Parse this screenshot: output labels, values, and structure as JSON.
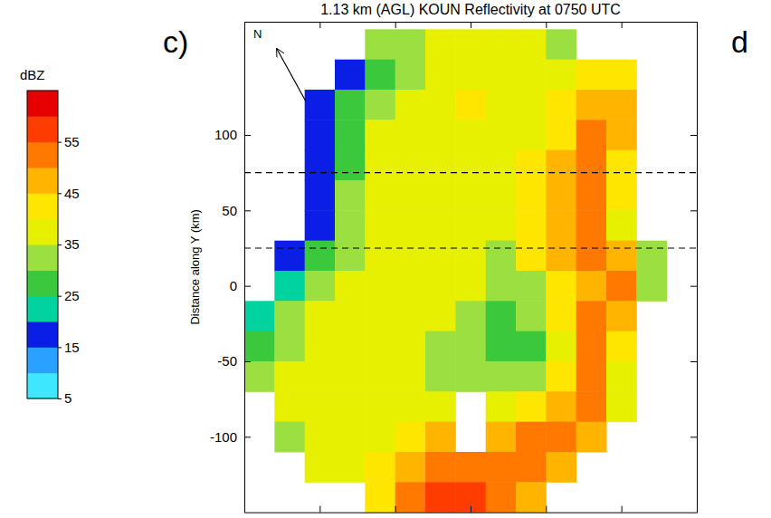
{
  "chart_data": {
    "type": "heatmap",
    "title": "1.13 km (AGL) KOUN Reflectivity at 0750 UTC",
    "y_label": "Distance along Y (km)",
    "annotations": [
      "c)",
      "d",
      "N"
    ],
    "xlim": [
      -150,
      150
    ],
    "ylim": [
      -150,
      175
    ],
    "xticks": [
      -150,
      -100,
      -50,
      0,
      50,
      100,
      150
    ],
    "yticks": [
      -100,
      -50,
      0,
      50,
      100
    ],
    "tick_labels": "y",
    "hlines": [
      75,
      25
    ],
    "x": [
      -140,
      -120,
      -100,
      -80,
      -60,
      -40,
      -20,
      0,
      20,
      40,
      60,
      80,
      100,
      120,
      140
    ],
    "y": [
      160,
      140,
      120,
      100,
      80,
      60,
      40,
      20,
      0,
      -20,
      -40,
      -60,
      -80,
      -100,
      -120,
      -140
    ],
    "values": [
      [
        null,
        null,
        null,
        null,
        30,
        34,
        38,
        38,
        37,
        35,
        32,
        null,
        null,
        null,
        null
      ],
      [
        null,
        null,
        null,
        18,
        28,
        33,
        37,
        38,
        38,
        37,
        37,
        42,
        40,
        null,
        null
      ],
      [
        null,
        null,
        17,
        25,
        33,
        38,
        38,
        40,
        38,
        38,
        40,
        48,
        45,
        null,
        null
      ],
      [
        null,
        null,
        17,
        28,
        35,
        38,
        38,
        38,
        37,
        38,
        42,
        50,
        45,
        null,
        null
      ],
      [
        null,
        null,
        17,
        27,
        35,
        37,
        38,
        38,
        37,
        40,
        45,
        52,
        42,
        null,
        null
      ],
      [
        null,
        null,
        18,
        30,
        36,
        38,
        38,
        37,
        36,
        40,
        47,
        53,
        40,
        null,
        null
      ],
      [
        null,
        null,
        18,
        32,
        36,
        37,
        37,
        36,
        35,
        42,
        48,
        52,
        38,
        null,
        null
      ],
      [
        null,
        17,
        25,
        32,
        36,
        38,
        37,
        35,
        33,
        40,
        45,
        52,
        45,
        30,
        null
      ],
      [
        null,
        20,
        33,
        36,
        37,
        37,
        36,
        35,
        30,
        32,
        42,
        48,
        50,
        30,
        null
      ],
      [
        20,
        30,
        35,
        37,
        38,
        37,
        35,
        33,
        28,
        30,
        40,
        50,
        45,
        null,
        null
      ],
      [
        25,
        33,
        36,
        37,
        37,
        36,
        34,
        32,
        28,
        28,
        38,
        50,
        40,
        null,
        null
      ],
      [
        30,
        35,
        37,
        37,
        37,
        36,
        34,
        33,
        30,
        33,
        40,
        52,
        35,
        null,
        null
      ],
      [
        null,
        35,
        37,
        37,
        37,
        35,
        35,
        null,
        38,
        40,
        45,
        52,
        35,
        null,
        null
      ],
      [
        null,
        32,
        36,
        37,
        38,
        40,
        45,
        null,
        45,
        50,
        50,
        48,
        null,
        null,
        null
      ],
      [
        null,
        null,
        35,
        38,
        40,
        48,
        52,
        52,
        52,
        50,
        45,
        null,
        null,
        null,
        null
      ],
      [
        null,
        null,
        null,
        null,
        42,
        50,
        55,
        55,
        50,
        45,
        null,
        null,
        null,
        null,
        null
      ]
    ],
    "colorbar": {
      "label": "dBZ",
      "lim": [
        5,
        65
      ],
      "ticks": [
        5,
        15,
        25,
        35,
        45,
        55
      ],
      "bounds": [
        5,
        10,
        15,
        20,
        25,
        30,
        35,
        40,
        45,
        50,
        55,
        60,
        65
      ],
      "colors": [
        "#3ee6ff",
        "#2aa0ff",
        "#0a1ee6",
        "#00d2a0",
        "#3cc83c",
        "#9be040",
        "#e6f000",
        "#ffe600",
        "#ffb400",
        "#ff7800",
        "#ff3c00",
        "#e60000"
      ]
    }
  }
}
